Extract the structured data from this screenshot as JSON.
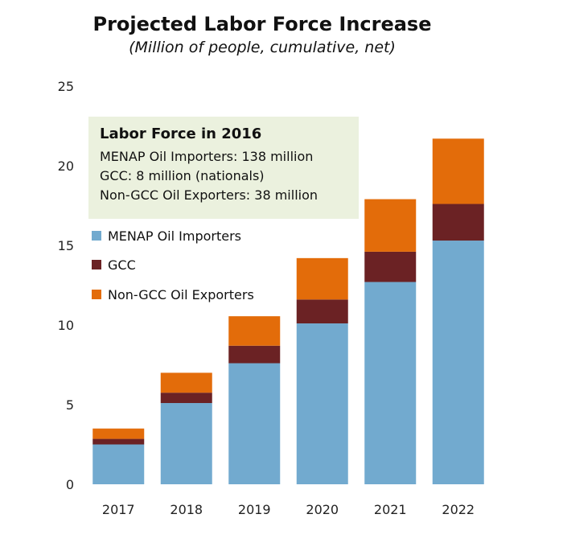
{
  "chart_data": {
    "type": "bar",
    "stacked": true,
    "title": "Projected Labor Force Increase",
    "subtitle": "(Million of people, cumulative, net)",
    "categories": [
      "2017",
      "2018",
      "2019",
      "2020",
      "2021",
      "2022"
    ],
    "series": [
      {
        "name": "MENAP Oil Importers",
        "color": "#72aacf",
        "values": [
          2.5,
          5.1,
          7.6,
          10.1,
          12.7,
          15.3
        ]
      },
      {
        "name": "GCC",
        "color": "#6b2224",
        "values": [
          0.35,
          0.65,
          1.1,
          1.5,
          1.9,
          2.3
        ]
      },
      {
        "name": "Non-GCC Oil Exporters",
        "color": "#e36c0a",
        "values": [
          0.65,
          1.25,
          1.85,
          2.6,
          3.3,
          4.1
        ]
      }
    ],
    "ylim": [
      0,
      25
    ],
    "yticks": [
      0,
      5,
      10,
      15,
      20,
      25
    ],
    "grid": false,
    "legend_position": "top-left",
    "annotation_box": {
      "title": "Labor Force in 2016",
      "lines": [
        "MENAP Oil Importers: 138 million",
        "GCC: 8 million (nationals)",
        "Non-GCC Oil Exporters: 38 million"
      ],
      "background": "#ebf1de"
    }
  }
}
